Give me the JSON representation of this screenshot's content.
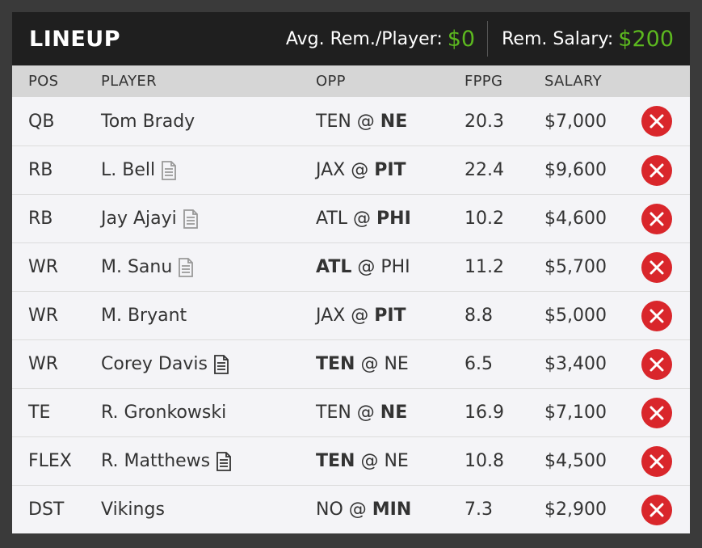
{
  "header": {
    "title": "LINEUP",
    "avg_label": "Avg. Rem./Player:",
    "avg_value": "$0",
    "rem_label": "Rem. Salary:",
    "rem_value": "$200"
  },
  "columns": {
    "pos": "POS",
    "player": "PLAYER",
    "opp": "OPP",
    "fppg": "FPPG",
    "salary": "SALARY"
  },
  "colors": {
    "accent_green": "#5cb81f",
    "remove_red": "#d9262b",
    "header_bg": "#1f1f1f"
  },
  "rows": [
    {
      "pos": "QB",
      "player": "Tom Brady",
      "note": "none",
      "away": "TEN",
      "at": "@",
      "home": "NE",
      "bold": "home",
      "fppg": "20.3",
      "salary": "$7,000"
    },
    {
      "pos": "RB",
      "player": "L. Bell",
      "note": "gray",
      "away": "JAX",
      "at": "@",
      "home": "PIT",
      "bold": "home",
      "fppg": "22.4",
      "salary": "$9,600"
    },
    {
      "pos": "RB",
      "player": "Jay Ajayi",
      "note": "gray",
      "away": "ATL",
      "at": "@",
      "home": "PHI",
      "bold": "home",
      "fppg": "10.2",
      "salary": "$4,600"
    },
    {
      "pos": "WR",
      "player": "M. Sanu",
      "note": "gray",
      "away": "ATL",
      "at": "@",
      "home": "PHI",
      "bold": "away",
      "fppg": "11.2",
      "salary": "$5,700"
    },
    {
      "pos": "WR",
      "player": "M. Bryant",
      "note": "none",
      "away": "JAX",
      "at": "@",
      "home": "PIT",
      "bold": "home",
      "fppg": "8.8",
      "salary": "$5,000"
    },
    {
      "pos": "WR",
      "player": "Corey Davis",
      "note": "dark",
      "away": "TEN",
      "at": "@",
      "home": "NE",
      "bold": "away",
      "fppg": "6.5",
      "salary": "$3,400"
    },
    {
      "pos": "TE",
      "player": "R. Gronkowski",
      "note": "none",
      "away": "TEN",
      "at": "@",
      "home": "NE",
      "bold": "home",
      "fppg": "16.9",
      "salary": "$7,100"
    },
    {
      "pos": "FLEX",
      "player": "R. Matthews",
      "note": "dark",
      "away": "TEN",
      "at": "@",
      "home": "NE",
      "bold": "away",
      "fppg": "10.8",
      "salary": "$4,500"
    },
    {
      "pos": "DST",
      "player": "Vikings",
      "note": "none",
      "away": "NO",
      "at": "@",
      "home": "MIN",
      "bold": "home",
      "fppg": "7.3",
      "salary": "$2,900"
    }
  ]
}
